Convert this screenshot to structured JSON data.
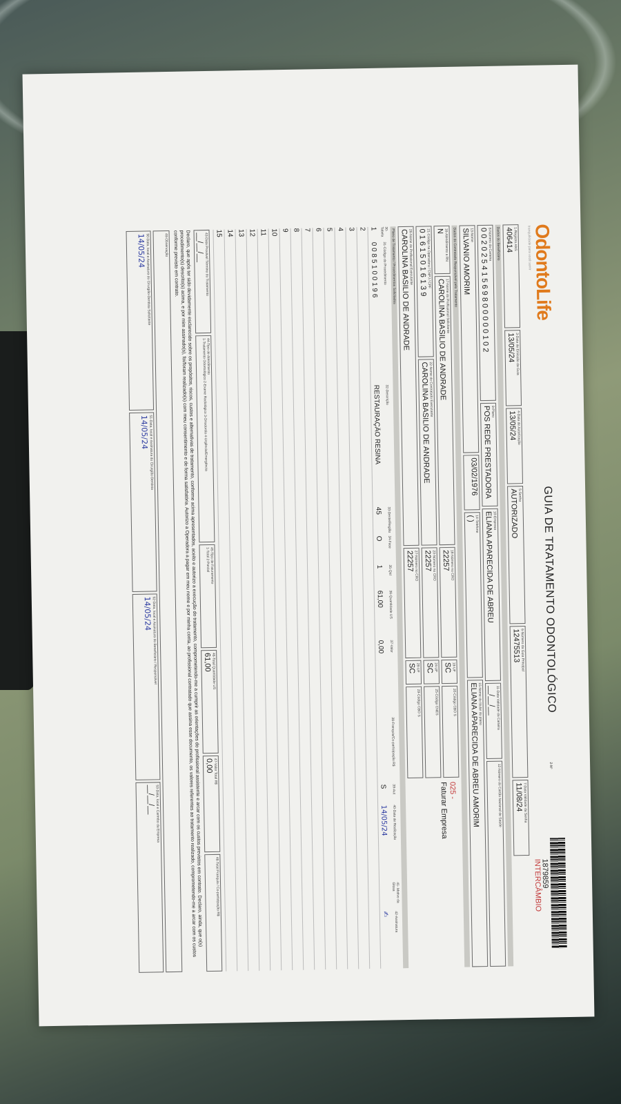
{
  "header": {
    "logo": "OdontoLife",
    "tagline": "tranquilidade para você sorrir",
    "title": "GUIA DE TRATAMENTO ODONTOLÓGICO",
    "via": "2-Nº",
    "guide_number": "1879859",
    "badge": "INTERCÂMBIO"
  },
  "row1": [
    {
      "label": "1-Registro ANS",
      "value": "406414"
    },
    {
      "label": "3-Data de Emissão da Guia",
      "value": "13/05/24"
    },
    {
      "label": "4-Data de Autorização",
      "value": "13/05/24"
    },
    {
      "label": "5-Senha",
      "value": "AUTORIZADO"
    },
    {
      "label": "6-Número da Guia Principal",
      "value": "12475513"
    },
    {
      "label": "7-Data Validade da Senha",
      "value": "11/08/24"
    }
  ],
  "beneficiary": {
    "section": "Dados do Beneficiário",
    "row_a": [
      {
        "label": "8-Número da Carteira",
        "value": "0 0 2 0 2 5 4 1 5 6 9 8 0 0 0 0 0 1 0 2"
      },
      {
        "label": "9-Plano",
        "value": "POS REDE PRESTADORA"
      },
      {
        "label": "10-Empresa",
        "value": "ELIANA APARECIDA DE ABREU"
      },
      {
        "label": "11-Data Validade da Carteira",
        "value": "__/__/__"
      },
      {
        "label": "12-Número do Cartão Nacional de Saúde",
        "value": ""
      }
    ],
    "row_b": [
      {
        "label": "13-Nome",
        "value": "SILVANIO AMORIM"
      },
      {
        "label": "",
        "value": "03/02/1976"
      },
      {
        "label": "14-Telefone",
        "value": "(  )"
      },
      {
        "label": "15-Nome do titular do plano",
        "value": "ELIANA APARECIDA DE ABREU AMORIM"
      }
    ]
  },
  "contractor": {
    "section": "Dados do Contratado Responsável pelo Tratamento",
    "billing_code": "025 -",
    "billing_text": "Faturar Empresa",
    "row_a": [
      {
        "label": "16-Atendimento a RN",
        "value": "N"
      },
      {
        "label": "17-Nome do Profissional Solicitante",
        "value": "CAROLINA BASILIO DE ANDRADE"
      },
      {
        "label": "18-Número no CRO",
        "value": "22257"
      },
      {
        "label": "19-UF",
        "value": "SC"
      },
      {
        "label": "20-Código CBO S",
        "value": ""
      }
    ],
    "row_b": [
      {
        "label": "21-Código na Operadora / CNPJ / CPF",
        "value": "0 1 6 1 5 0 1 6 1 3 9"
      },
      {
        "label": "22-Nome do Contratado Executante",
        "value": "CAROLINA BASILIO DE ANDRADE"
      },
      {
        "label": "23-Número no CRO",
        "value": "22257"
      },
      {
        "label": "24-UF",
        "value": "SC"
      },
      {
        "label": "25-Código CNES",
        "value": ""
      }
    ],
    "row_c": [
      {
        "label": "26-Nome do Profissional Executante",
        "value": "CAROLINA BASILIO DE ANDRADE"
      },
      {
        "label": "27-Número no CRO",
        "value": "22257"
      },
      {
        "label": "28-UF",
        "value": "SC"
      },
      {
        "label": "29-Código CBO S",
        "value": ""
      }
    ]
  },
  "plan": {
    "section": "Plano de Tratamento / Procedimentos Solicitados",
    "columns": [
      "30-Tabela",
      "31-Código do Procedimento",
      "32-Descrição",
      "33-Dente/Região",
      "34-Face",
      "35-Qtd",
      "36-Quantidade US",
      "37-Valor",
      "38-Franquia/Co-participação R$",
      "39-Aut",
      "40-Data de Realização",
      "41- Motivo da Glosa",
      "42-Assinatura"
    ],
    "rows": [
      {
        "n": "1",
        "code": "0 0 8 5 1 0 0 1 9 6",
        "desc": "RESTAURAÇÃO RESINA",
        "tooth": "45",
        "face": "O",
        "qty": "1",
        "us": "61,00",
        "value": "0,00",
        "franchise": "",
        "aut": "S",
        "date": "14/05/24",
        "reason": "",
        "sig": "✍"
      },
      {
        "n": "2"
      },
      {
        "n": "3"
      },
      {
        "n": "4"
      },
      {
        "n": "5"
      },
      {
        "n": "6"
      },
      {
        "n": "7"
      },
      {
        "n": "8"
      },
      {
        "n": "9"
      },
      {
        "n": "10"
      },
      {
        "n": "11"
      },
      {
        "n": "12"
      },
      {
        "n": "13"
      },
      {
        "n": "14"
      },
      {
        "n": "15"
      }
    ]
  },
  "totals": [
    {
      "label": "43-Data Provável Término do Tratamento",
      "value": "__/__/__"
    },
    {
      "label": "44-Tipo de Atendimento",
      "value": "1-Tratamento Odontológico  2-Exame Radiológico  3-Ortodontia  4-Urgência/Emergência"
    },
    {
      "label": "45-Tipo de Faturamento",
      "value": "1-Total  2-Parcial"
    },
    {
      "label": "46-Total Quantidade US",
      "value": "61,00"
    },
    {
      "label": "47-Valor Total R$",
      "value": "0,00"
    },
    {
      "label": "48-Total Franquia / Co-participação R$",
      "value": ""
    }
  ],
  "declaration": "Declaro, que após ter sido devidamente esclarecido sobre os propósitos, riscos, custos e alternativas de tratamento, conforme acima apresentados, aceito e autorizo a execução do tratamento, comprometendo-me a cumprir as orientações do profissional assistente e arcar com os custos previstos em contrato. Declaro, ainda, que o(s) procedimento(s) descrito(s) acima, e por mim assinado(s), foi/foram realizado(s) com meu consentimento e de forma satisfatória. Autorizo a Operadora a pagar em meu nome e por minha conta, ao profissional contratado que assina esse documento, os valores referentes ao tratamento realizado, comprometendo-me a arcar com os custos conforme previsto em contrato.",
  "observation_label": "49-Observação",
  "signatures": [
    {
      "label": "50-Data, local e Assinatura do Cirurgião-Dentista Solicitante",
      "value": "14/05/24"
    },
    {
      "label": "51-Data, local e Assinatura do Cirurgião-Dentista",
      "value": "14/05/24"
    },
    {
      "label": "52-Data, local e Assinatura do Beneficiário / Responsável",
      "value": "14/05/24"
    },
    {
      "label": "53-Data, local e Carimbo da Empresa",
      "value": "__/__/__"
    }
  ]
}
